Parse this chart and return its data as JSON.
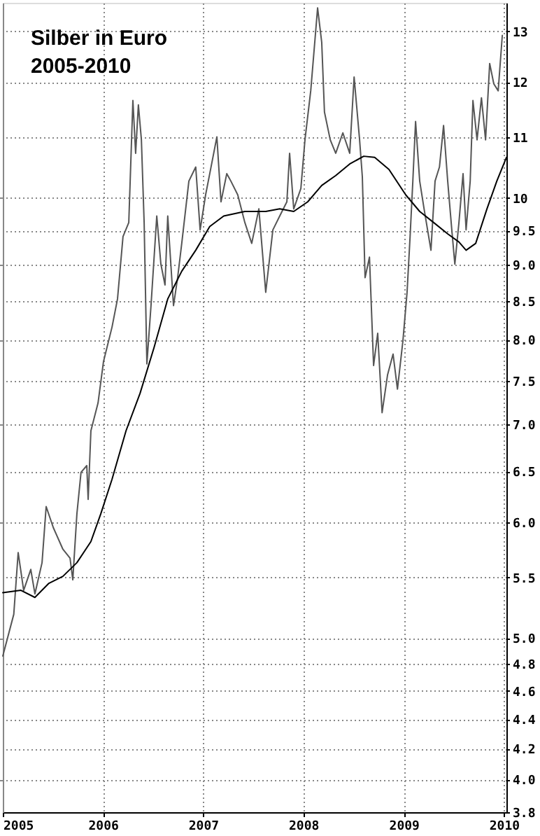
{
  "chart_data": {
    "type": "line",
    "title": "Silber in Euro",
    "subtitle": "2005-2010",
    "series": [
      {
        "color": "#555555",
        "x": [
          "2005-01-01",
          "2005-02-10",
          "2005-02-26",
          "2005-03-18",
          "2005-04-13",
          "2005-04-28",
          "2005-05-24",
          "2005-06-08",
          "2005-07-04",
          "2005-08-08",
          "2005-09-03",
          "2005-09-13",
          "2005-09-28",
          "2005-10-13",
          "2005-11-03",
          "2005-11-08",
          "2005-11-18",
          "2005-12-14",
          "2006-01-03",
          "2006-02-03",
          "2006-02-23",
          "2006-03-15",
          "2006-04-05",
          "2006-04-20",
          "2006-04-30",
          "2006-05-10",
          "2006-05-21",
          "2006-05-31",
          "2006-06-10",
          "2006-06-25",
          "2006-07-16",
          "2006-07-31",
          "2006-08-15",
          "2006-08-25",
          "2006-09-15",
          "2006-09-30",
          "2006-10-15",
          "2006-11-10",
          "2006-12-05",
          "2006-12-21",
          "2007-01-10",
          "2007-01-25",
          "2007-02-20",
          "2007-03-07",
          "2007-03-28",
          "2007-04-12",
          "2007-05-07",
          "2007-06-02",
          "2007-06-27",
          "2007-07-23",
          "2007-08-17",
          "2007-09-12",
          "2007-10-07",
          "2007-11-02",
          "2007-11-12",
          "2007-11-27",
          "2007-12-23",
          "2008-01-07",
          "2008-01-28",
          "2008-02-22",
          "2008-03-08",
          "2008-03-18",
          "2008-04-08",
          "2008-04-28",
          "2008-05-24",
          "2008-06-18",
          "2008-07-04",
          "2008-07-24",
          "2008-08-03",
          "2008-08-13",
          "2008-08-29",
          "2008-09-13",
          "2008-09-28",
          "2008-10-14",
          "2008-11-03",
          "2008-11-23",
          "2008-12-09",
          "2008-12-29",
          "2009-01-13",
          "2009-01-24",
          "2009-02-03",
          "2009-02-13",
          "2009-02-28",
          "2009-03-16",
          "2009-04-10",
          "2009-04-25",
          "2009-05-11",
          "2009-05-26",
          "2009-06-10",
          "2009-06-25",
          "2009-07-06",
          "2009-07-21",
          "2009-08-05",
          "2009-08-16",
          "2009-08-31",
          "2009-09-10",
          "2009-09-25",
          "2009-10-11",
          "2009-10-26",
          "2009-11-10",
          "2009-11-25",
          "2009-12-11",
          "2009-12-26"
        ],
        "values": [
          4.86,
          5.19,
          5.72,
          5.39,
          5.57,
          5.36,
          5.63,
          6.15,
          5.95,
          5.75,
          5.67,
          5.48,
          6.08,
          6.49,
          6.56,
          6.22,
          6.93,
          7.24,
          7.73,
          8.16,
          8.53,
          9.41,
          9.62,
          11.66,
          10.73,
          11.58,
          10.96,
          9.62,
          7.7,
          8.44,
          9.72,
          9.01,
          8.72,
          9.72,
          8.44,
          8.82,
          9.31,
          10.27,
          10.5,
          9.51,
          10.05,
          10.39,
          11.01,
          9.94,
          10.39,
          10.27,
          10.05,
          9.62,
          9.31,
          9.83,
          8.62,
          9.51,
          9.72,
          9.94,
          10.73,
          9.83,
          10.15,
          10.96,
          11.84,
          13.49,
          12.78,
          11.45,
          10.96,
          10.73,
          11.08,
          10.73,
          12.1,
          10.96,
          10.34,
          8.82,
          9.11,
          7.68,
          8.08,
          7.13,
          7.57,
          7.82,
          7.4,
          7.99,
          8.62,
          9.41,
          10.27,
          11.28,
          10.27,
          9.83,
          9.21,
          10.27,
          10.5,
          11.21,
          10.27,
          9.51,
          9.01,
          9.62,
          10.39,
          9.51,
          10.27,
          11.66,
          10.96,
          11.71,
          10.96,
          12.36,
          11.97,
          11.84,
          12.92
        ]
      },
      {
        "color": "#000000",
        "x": [
          "2005-01-01",
          "2005-03-08",
          "2005-04-28",
          "2005-06-18",
          "2005-08-08",
          "2005-09-28",
          "2005-11-18",
          "2005-12-24",
          "2006-02-03",
          "2006-03-26",
          "2006-05-16",
          "2006-07-06",
          "2006-08-25",
          "2006-10-15",
          "2006-12-05",
          "2007-01-25",
          "2007-03-17",
          "2007-06-02",
          "2007-08-17",
          "2007-10-07",
          "2007-11-27",
          "2008-01-17",
          "2008-03-08",
          "2008-04-28",
          "2008-06-18",
          "2008-08-08",
          "2008-09-17",
          "2008-11-08",
          "2009-01-08",
          "2009-02-28",
          "2009-04-20",
          "2009-06-10",
          "2009-07-21",
          "2009-08-16",
          "2009-09-20",
          "2009-10-31",
          "2009-12-06",
          "2010-01-10"
        ],
        "values": [
          5.37,
          5.39,
          5.33,
          5.45,
          5.51,
          5.63,
          5.82,
          6.08,
          6.42,
          6.93,
          7.35,
          7.9,
          8.53,
          8.91,
          9.21,
          9.56,
          9.72,
          9.79,
          9.79,
          9.83,
          9.79,
          9.94,
          10.2,
          10.36,
          10.55,
          10.68,
          10.66,
          10.46,
          10.05,
          9.79,
          9.62,
          9.45,
          9.33,
          9.21,
          9.31,
          9.83,
          10.27,
          10.66
        ]
      }
    ],
    "xlim": [
      "2005-01-01",
      "2010-01-10"
    ],
    "xticks": [
      {
        "value": "2005-01-01",
        "label": "2005"
      },
      {
        "value": "2006-01-01",
        "label": "2006"
      },
      {
        "value": "2007-01-01",
        "label": "2007"
      },
      {
        "value": "2008-01-01",
        "label": "2008"
      },
      {
        "value": "2009-01-01",
        "label": "2009"
      },
      {
        "value": "2010-01-01",
        "label": "2010"
      }
    ],
    "ylim": [
      3.8,
      13.6
    ],
    "log": true,
    "yticks": [
      {
        "value": 3.8,
        "label": "3.8"
      },
      {
        "value": 4,
        "label": "4.0"
      },
      {
        "value": 4.2,
        "label": "4.2"
      },
      {
        "value": 4.4,
        "label": "4.4"
      },
      {
        "value": 4.6,
        "label": "4.6"
      },
      {
        "value": 4.8,
        "label": "4.8"
      },
      {
        "value": 5,
        "label": "5.0"
      },
      {
        "value": 5.5,
        "label": "5.5"
      },
      {
        "value": 6,
        "label": "6.0"
      },
      {
        "value": 6.5,
        "label": "6.5"
      },
      {
        "value": 7,
        "label": "7.0"
      },
      {
        "value": 7.5,
        "label": "7.5"
      },
      {
        "value": 8,
        "label": "8.0"
      },
      {
        "value": 8.5,
        "label": "8.5"
      },
      {
        "value": 9,
        "label": "9.0"
      },
      {
        "value": 9.5,
        "label": "9.5"
      },
      10,
      11,
      12,
      13
    ],
    "grid": true,
    "marker": "none",
    "line_style": "solid"
  }
}
